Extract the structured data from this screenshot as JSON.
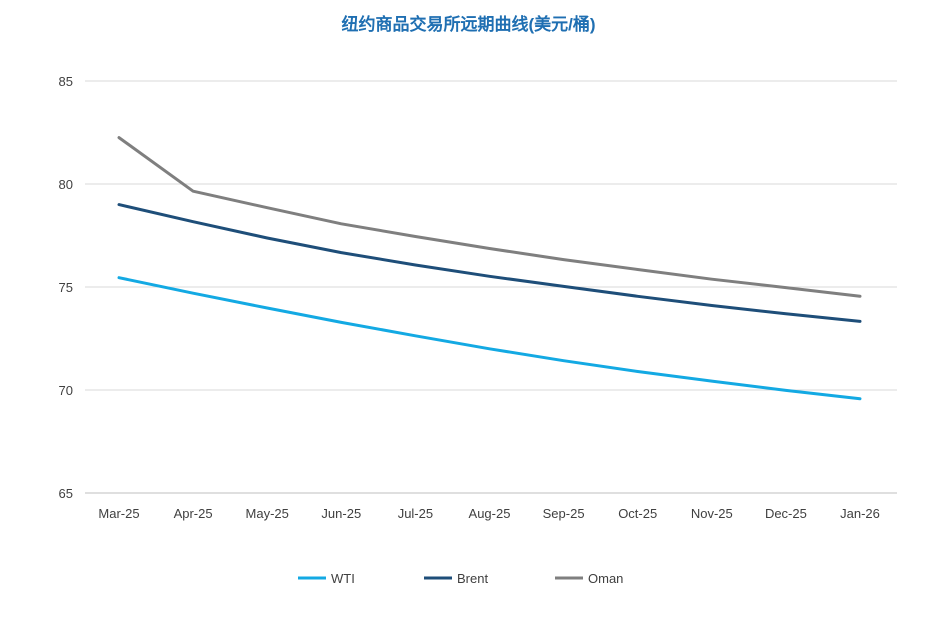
{
  "chart_data": {
    "type": "line",
    "title": "纽约商品交易所远期曲线(美元/桶)",
    "xlabel": "",
    "ylabel": "",
    "categories": [
      "Mar-25",
      "Apr-25",
      "May-25",
      "Jun-25",
      "Jul-25",
      "Aug-25",
      "Sep-25",
      "Oct-25",
      "Nov-25",
      "Dec-25",
      "Jan-26"
    ],
    "ylim": [
      65,
      85
    ],
    "yticks": [
      65,
      70,
      75,
      80,
      85
    ],
    "grid": true,
    "legend_position": "bottom",
    "series": [
      {
        "name": "WTI",
        "color": "#13a9e3",
        "values": [
          75.45,
          74.7,
          73.98,
          73.28,
          72.63,
          72.0,
          71.42,
          70.9,
          70.43,
          69.98,
          69.58
        ]
      },
      {
        "name": "Brent",
        "color": "#1e4e79",
        "values": [
          79.0,
          78.17,
          77.38,
          76.67,
          76.07,
          75.52,
          75.03,
          74.55,
          74.1,
          73.7,
          73.33
        ]
      },
      {
        "name": "Oman",
        "color": "#7f7f7f",
        "values": [
          82.25,
          79.65,
          78.85,
          78.07,
          77.45,
          76.87,
          76.33,
          75.85,
          75.38,
          74.97,
          74.55
        ]
      }
    ]
  }
}
